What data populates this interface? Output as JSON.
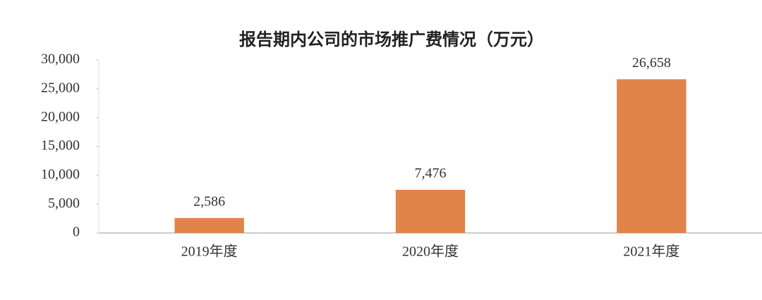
{
  "chart_data": {
    "type": "bar",
    "title": "报告期内公司的市场推广费情况（万元）",
    "categories": [
      "2019年度",
      "2020年度",
      "2021年度"
    ],
    "values": [
      2586,
      7476,
      26658
    ],
    "value_labels": [
      "2,586",
      "7,476",
      "26,658"
    ],
    "color": "#e0844a",
    "ylim": [
      0,
      30000
    ],
    "yticks": [
      0,
      {
        "value": 5000,
        "label": "5,000"
      },
      {
        "value": 10000,
        "label": "10,000"
      },
      {
        "value": 15000,
        "label": "15,000"
      },
      {
        "value": 20000,
        "label": "20,000"
      },
      {
        "value": 25000,
        "label": "25,000"
      },
      {
        "value": 30000,
        "label": "30,000"
      }
    ],
    "grid": false
  }
}
